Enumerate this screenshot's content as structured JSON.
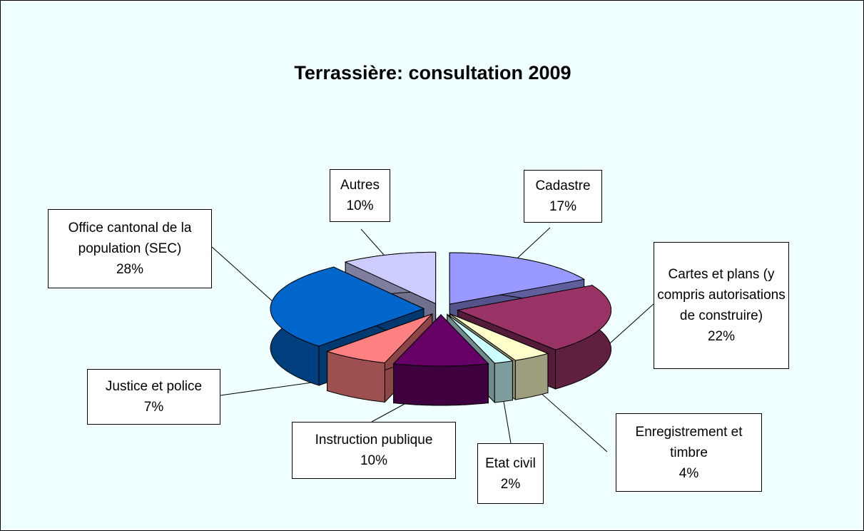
{
  "chart_data": {
    "type": "pie",
    "title": "Terrassière: consultation 2009",
    "categories": [
      "Cadastre",
      "Cartes et plans (y compris autorisations de construire)",
      "Enregistrement et timbre",
      "Etat civil",
      "Instruction publique",
      "Justice et police",
      "Office cantonal de la population (SEC)",
      "Autres"
    ],
    "values": [
      17,
      22,
      4,
      2,
      10,
      7,
      28,
      10
    ],
    "value_labels": [
      "17%",
      "22%",
      "4%",
      "2%",
      "10%",
      "7%",
      "28%",
      "10%"
    ],
    "colors": [
      "#9999ff",
      "#993366",
      "#ffffcc",
      "#ccffff",
      "#660066",
      "#ff8080",
      "#0066cc",
      "#ccccff"
    ]
  }
}
